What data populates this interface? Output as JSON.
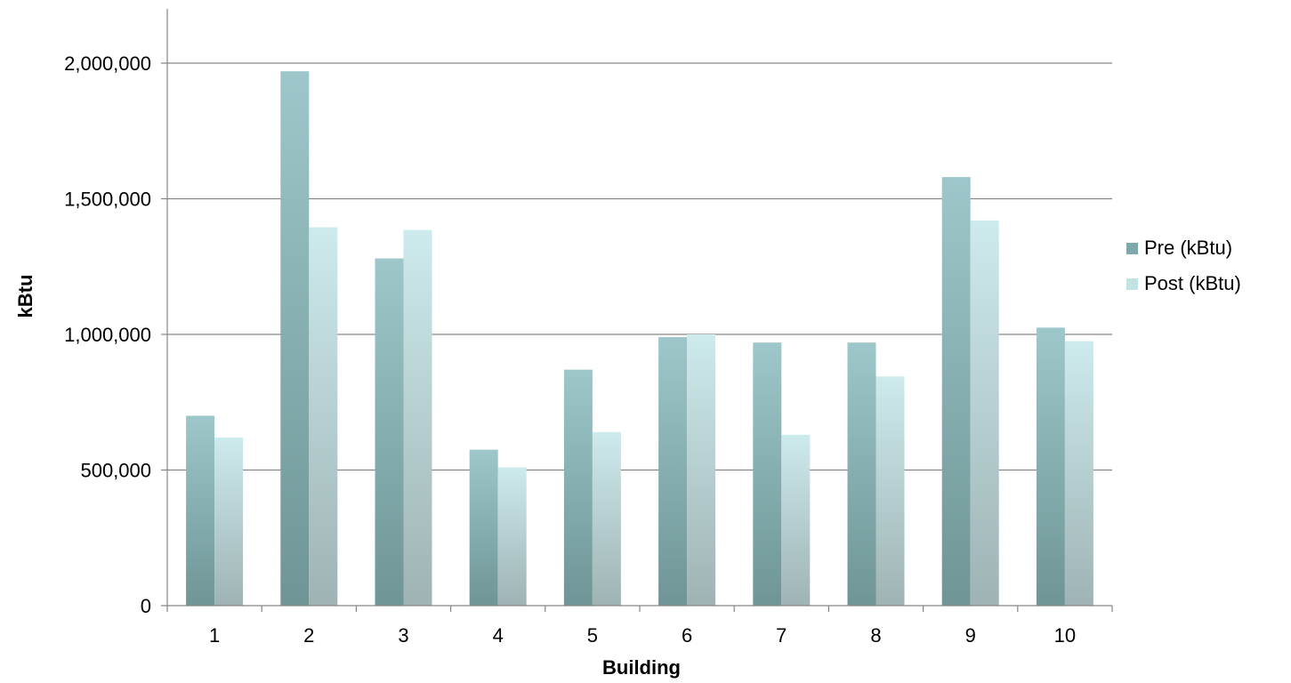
{
  "chart_data": {
    "type": "bar",
    "title": "",
    "xlabel": "Building",
    "ylabel": "kBtu",
    "categories": [
      "1",
      "2",
      "3",
      "4",
      "5",
      "6",
      "7",
      "8",
      "9",
      "10"
    ],
    "series": [
      {
        "name": "Pre (kBtu)",
        "color": "#8fbcbf",
        "values": [
          700000,
          1970000,
          1280000,
          575000,
          870000,
          990000,
          970000,
          970000,
          1580000,
          1025000
        ]
      },
      {
        "name": "Post (kBtu)",
        "color": "#c9e6e8",
        "values": [
          620000,
          1395000,
          1385000,
          510000,
          640000,
          1000000,
          630000,
          845000,
          1420000,
          975000
        ]
      }
    ],
    "ylim": [
      0,
      2200000
    ],
    "yticks": [
      0,
      500000,
      1000000,
      1500000,
      2000000
    ],
    "ytick_labels": [
      "0",
      "500,000",
      "1,000,000",
      "1,500,000",
      "2,000,000"
    ],
    "grid": true,
    "legend_position": "right"
  }
}
